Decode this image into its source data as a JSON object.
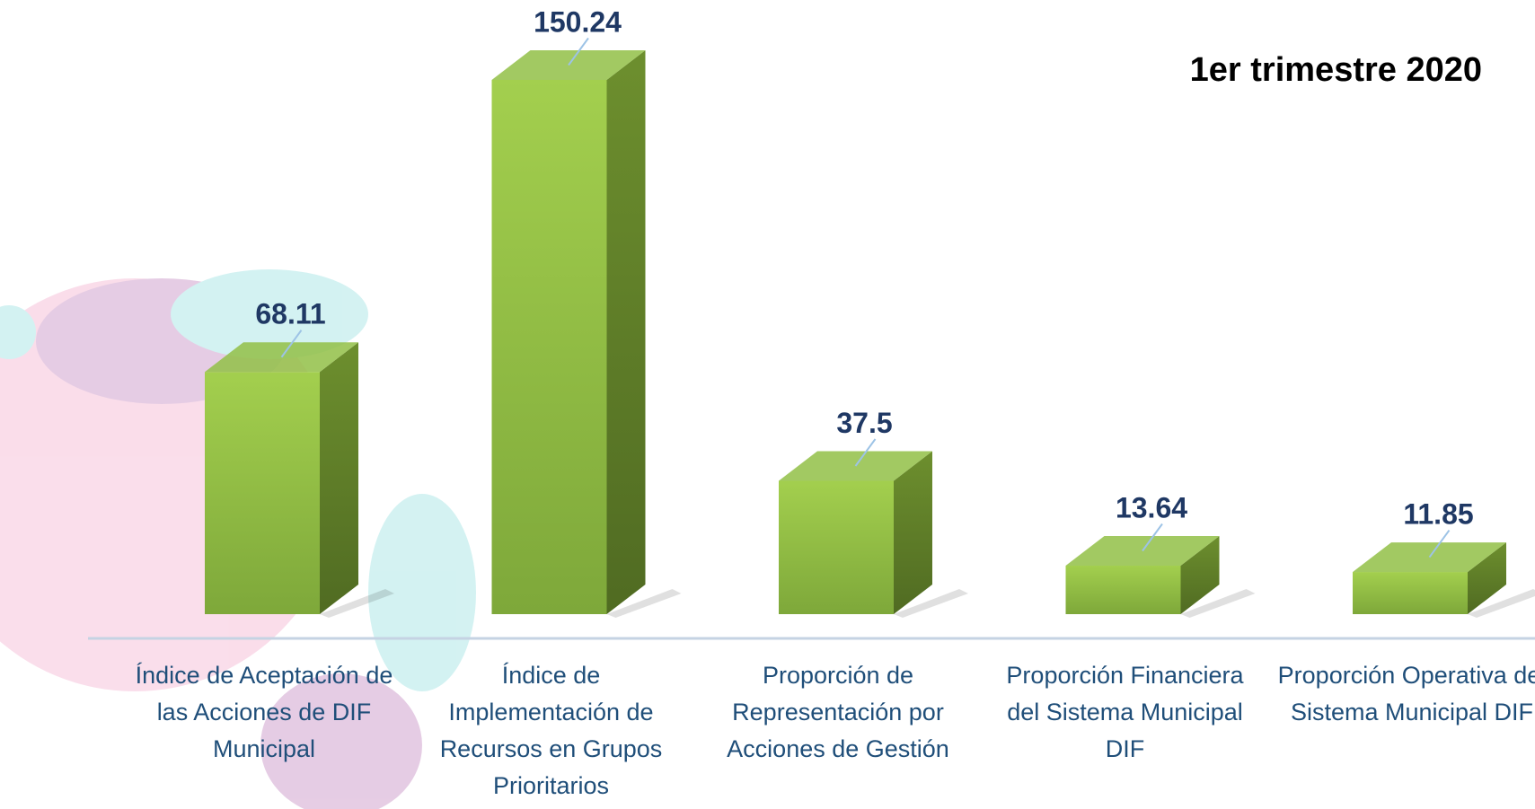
{
  "chart_data": {
    "type": "bar3d",
    "title": "1er trimestre 2020",
    "categories": [
      "Índice de Aceptación de las Acciones de DIF Municipal",
      "Índice de Implementación de Recursos en Grupos Prioritarios",
      "Proporción de Representación por Acciones de Gestión",
      "Proporción Financiera del Sistema Municipal DIF",
      "Proporción Operativa del Sistema Municipal DIF"
    ],
    "values": [
      68.11,
      150.24,
      37.5,
      13.64,
      11.85
    ],
    "color": "#92c046"
  }
}
